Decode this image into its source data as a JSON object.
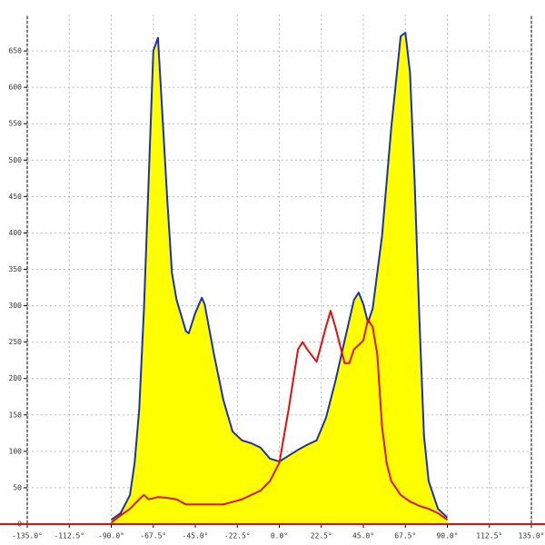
{
  "chart_data": {
    "type": "area",
    "xlim": [
      -135,
      135
    ],
    "ylim": [
      0,
      700
    ],
    "grid": true,
    "xticks": [
      {
        "value": -135,
        "label": "-135.0°"
      },
      {
        "value": -112.5,
        "label": "-112.5°"
      },
      {
        "value": -90,
        "label": "-90.0°"
      },
      {
        "value": -67.5,
        "label": "-67.5°"
      },
      {
        "value": -45,
        "label": "-45.0°"
      },
      {
        "value": -22.5,
        "label": "-22.5°"
      },
      {
        "value": 0,
        "label": "0.0°"
      },
      {
        "value": 22.5,
        "label": "22.5°"
      },
      {
        "value": 45,
        "label": "45.0°"
      },
      {
        "value": 67.5,
        "label": "67.5°"
      },
      {
        "value": 90,
        "label": "90.0°"
      },
      {
        "value": 112.5,
        "label": "112.5°"
      },
      {
        "value": 135,
        "label": "135.0°"
      }
    ],
    "yticks": [
      0,
      50,
      100,
      150,
      200,
      250,
      300,
      350,
      400,
      450,
      500,
      550,
      600,
      650
    ],
    "series": [
      {
        "color": "#1a2fbf",
        "fill": "#ffff00",
        "x": [
          -90,
          -85,
          -80,
          -77.5,
          -75,
          -72.5,
          -70,
          -67.5,
          -65,
          -62.5,
          -60,
          -57.5,
          -55,
          -50,
          -48.5,
          -45,
          -41.5,
          -40,
          -35,
          -30,
          -25,
          -20,
          -15,
          -10,
          -5,
          0,
          5,
          10,
          15,
          20,
          25,
          30,
          35,
          40,
          42.5,
          45,
          47.5,
          50,
          55,
          60,
          65,
          67.5,
          70,
          72.5,
          75,
          77.5,
          80,
          85,
          90
        ],
        "values": [
          6,
          15,
          40,
          84,
          158,
          296,
          470,
          650,
          668,
          558,
          445,
          345,
          308,
          265,
          262,
          290,
          311,
          302,
          233,
          171,
          127,
          115,
          111,
          105,
          90,
          86,
          94,
          102,
          109,
          115,
          146,
          196,
          252,
          308,
          318,
          302,
          277,
          296,
          396,
          545,
          670,
          675,
          620,
          470,
          283,
          121,
          59,
          21,
          9
        ]
      },
      {
        "color": "#e01010",
        "x": [
          -90,
          -85,
          -80,
          -75,
          -72.5,
          -70,
          -65,
          -60,
          -55,
          -50,
          -40,
          -30,
          -20,
          -10,
          -5,
          0,
          5,
          10,
          12.5,
          15,
          20,
          25,
          27.5,
          30,
          35,
          37.5,
          40,
          45,
          47.5,
          50,
          52.5,
          55,
          57.5,
          60,
          65,
          70,
          75,
          80,
          85,
          90
        ],
        "values": [
          2,
          12,
          21,
          34,
          40,
          34,
          37,
          36,
          34,
          27,
          27,
          27,
          34,
          46,
          59,
          84,
          158,
          240,
          250,
          240,
          223,
          271,
          293,
          271,
          221,
          221,
          240,
          252,
          281,
          271,
          233,
          134,
          84,
          59,
          40,
          31,
          25,
          21,
          15,
          6
        ]
      }
    ]
  }
}
